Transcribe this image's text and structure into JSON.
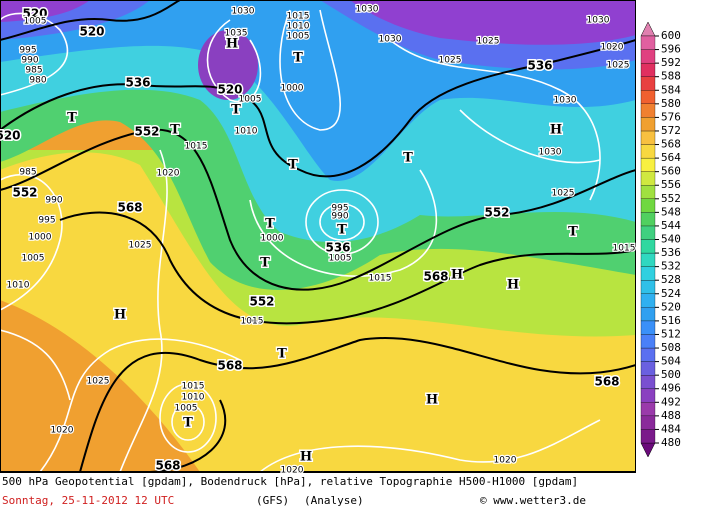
{
  "map": {
    "contour_labels": [
      "520",
      "520",
      "536",
      "552",
      "552",
      "568",
      "520",
      "536",
      "552",
      "536",
      "552",
      "568",
      "568",
      "568",
      "568",
      "520"
    ],
    "pressure_labels": [
      "1030",
      "1035",
      "1005",
      "995",
      "990",
      "985",
      "980",
      "1015",
      "1010",
      "1005",
      "1000",
      "1005",
      "1010",
      "1015",
      "1020",
      "985",
      "990",
      "995",
      "1000",
      "1005",
      "1010",
      "1025",
      "1030",
      "1030",
      "1025",
      "1025",
      "1020",
      "1030",
      "1030",
      "1025",
      "1015",
      "995",
      "990",
      "1000",
      "1005",
      "1015",
      "1015",
      "1025",
      "1015",
      "1010",
      "1005",
      "1020",
      "1020",
      "1020",
      "1030",
      "1025"
    ],
    "systems": [
      "H",
      "T",
      "T",
      "T",
      "T",
      "T",
      "T",
      "T",
      "T",
      "T",
      "H",
      "T",
      "H",
      "H",
      "H",
      "T",
      "H",
      "T",
      "H"
    ]
  },
  "legend": {
    "ticks": [
      480,
      484,
      488,
      492,
      496,
      500,
      504,
      508,
      512,
      516,
      520,
      524,
      528,
      532,
      536,
      540,
      544,
      548,
      552,
      556,
      560,
      564,
      568,
      572,
      576,
      580,
      584,
      588,
      592,
      596,
      600
    ],
    "colors": [
      "#7a1a8a",
      "#8a2a9a",
      "#9a3aaa",
      "#8a40c0",
      "#7a50d0",
      "#6a60e0",
      "#5a70f0",
      "#4a80f8",
      "#3a90f8",
      "#30a0f0",
      "#30b0f0",
      "#30c0e8",
      "#30d0e0",
      "#30d8c0",
      "#30d8a0",
      "#40d080",
      "#50d060",
      "#70d840",
      "#a0e040",
      "#d0e840",
      "#f8f040",
      "#f8d840",
      "#f8c040",
      "#f0a030",
      "#f08030",
      "#f06030",
      "#e84040",
      "#e03060",
      "#e04080",
      "#e060a0"
    ]
  },
  "footer": {
    "description": "500 hPa Geopotential [gpdam], Bodendruck [hPa], relative Topographie H500-H1000 [gpdam]",
    "date": "Sonntag, 25-11-2012  12 UTC",
    "model": "(GFS)",
    "run": "(Analyse)",
    "credit": "© www.wetter3.de"
  }
}
